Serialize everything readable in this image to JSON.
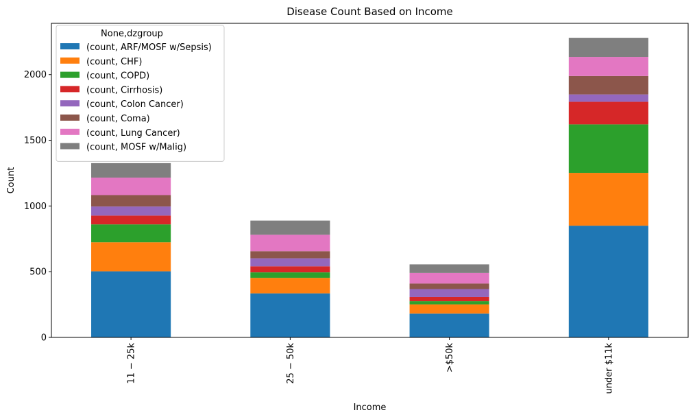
{
  "chart_data": {
    "type": "bar",
    "stacked": true,
    "title": "Disease Count Based on Income",
    "xlabel": "Income",
    "ylabel": "Count",
    "categories": [
      "$11-$25k",
      "$25-$50k",
      ">$50k",
      "under $11k"
    ],
    "category_tick_labels": [
      "11 − 25k",
      "25 − 50k",
      ">$50k",
      "under $11k"
    ],
    "ylim": [
      0,
      2390
    ],
    "yticks": [
      0,
      500,
      1000,
      1500,
      2000
    ],
    "grid": false,
    "legend": {
      "title": "None,dzgroup",
      "position": "top-left"
    },
    "series": [
      {
        "name": "(count, ARF/MOSF w/Sepsis)",
        "color": "#1f77b4",
        "values": [
          503,
          335,
          181,
          850
        ]
      },
      {
        "name": "(count, CHF)",
        "color": "#ff7f0e",
        "values": [
          221,
          118,
          70,
          402
        ]
      },
      {
        "name": "(count, COPD)",
        "color": "#2ca02c",
        "values": [
          136,
          42,
          25,
          369
        ]
      },
      {
        "name": "(count, Cirrhosis)",
        "color": "#d62728",
        "values": [
          67,
          46,
          32,
          172
        ]
      },
      {
        "name": "(count, Colon Cancer)",
        "color": "#9467bd",
        "values": [
          69,
          61,
          60,
          56
        ]
      },
      {
        "name": "(count, Coma)",
        "color": "#8c564b",
        "values": [
          87,
          54,
          42,
          140
        ]
      },
      {
        "name": "(count, Lung Cancer)",
        "color": "#e377c2",
        "values": [
          133,
          125,
          81,
          145
        ]
      },
      {
        "name": "(count, MOSF w/Malig)",
        "color": "#7f7f7f",
        "values": [
          110,
          108,
          65,
          146
        ]
      }
    ]
  }
}
